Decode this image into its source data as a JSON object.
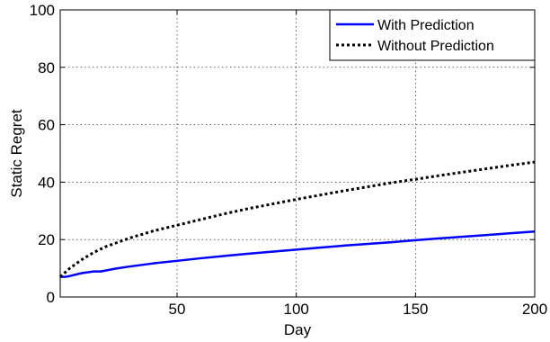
{
  "chart_data": {
    "type": "line",
    "title": "",
    "xlabel": "Day",
    "ylabel": "Static Regret",
    "xlim": [
      1,
      200
    ],
    "ylim": [
      0,
      100
    ],
    "xticks": [
      50,
      100,
      150,
      200
    ],
    "yticks": [
      0,
      20,
      40,
      60,
      80,
      100
    ],
    "grid": true,
    "legend_position": "top-right",
    "series": [
      {
        "name": "With Prediction",
        "color": "#0000ff",
        "style": "solid",
        "x": [
          1,
          3,
          5,
          10,
          15,
          18,
          20,
          25,
          30,
          40,
          50,
          60,
          70,
          80,
          90,
          100,
          110,
          120,
          130,
          140,
          150,
          160,
          170,
          180,
          190,
          200
        ],
        "y": [
          7.0,
          7.0,
          7.3,
          8.3,
          8.9,
          8.9,
          9.2,
          10.0,
          10.6,
          11.7,
          12.6,
          13.5,
          14.3,
          15.1,
          15.8,
          16.5,
          17.2,
          17.9,
          18.5,
          19.1,
          19.8,
          20.4,
          21.0,
          21.6,
          22.2,
          22.8
        ]
      },
      {
        "name": "Without Prediction",
        "color": "#000000",
        "style": "dotted",
        "x": [
          1,
          3,
          5,
          10,
          15,
          20,
          25,
          30,
          40,
          50,
          60,
          70,
          80,
          90,
          100,
          110,
          120,
          130,
          140,
          150,
          160,
          170,
          180,
          190,
          200
        ],
        "y": [
          7.0,
          8.5,
          10.0,
          13.0,
          15.5,
          17.5,
          19.0,
          20.5,
          23.0,
          25.0,
          27.0,
          29.0,
          30.8,
          32.4,
          34.0,
          35.5,
          37.0,
          38.4,
          39.8,
          41.0,
          42.3,
          43.5,
          44.7,
          45.9,
          47.0
        ]
      }
    ]
  }
}
